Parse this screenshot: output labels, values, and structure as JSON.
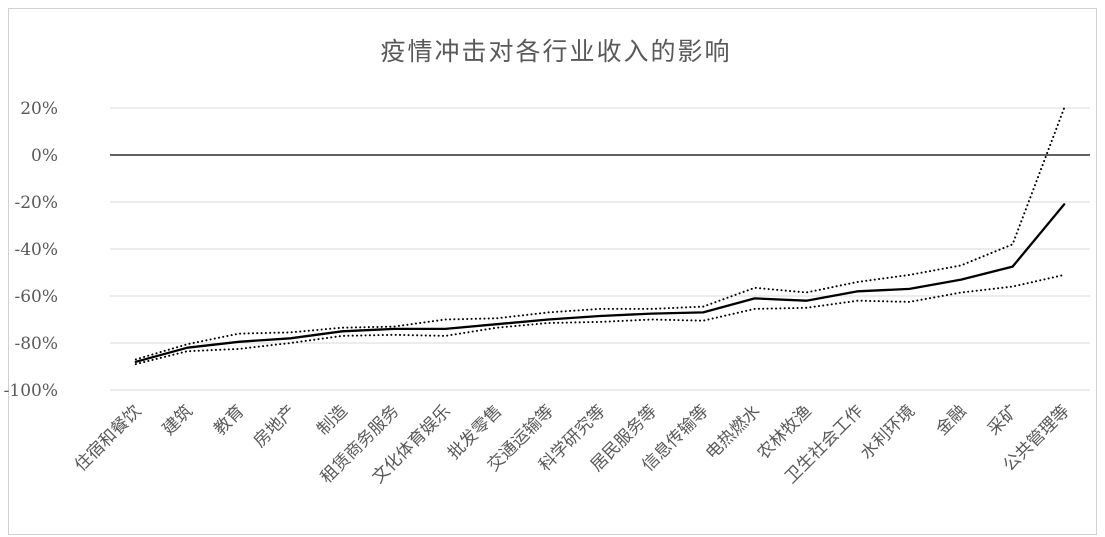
{
  "chart_data": {
    "type": "line",
    "title": "疫情冲击对各行业收入的影响",
    "categories": [
      "住宿和餐饮",
      "建筑",
      "教育",
      "房地产",
      "制造",
      "租赁商务服务",
      "文化体育娱乐",
      "批发零售",
      "交通运输等",
      "科学研究等",
      "居民服务等",
      "信息传输等",
      "电热燃水",
      "农林牧渔",
      "卫生社会工作",
      "水利环境",
      "金融",
      "采矿",
      "公共管理等"
    ],
    "y_ticks": [
      "20%",
      "0%",
      "-20%",
      "-40%",
      "-60%",
      "-80%",
      "-100%"
    ],
    "ylim": [
      -100,
      20
    ],
    "grid": true,
    "series": [
      {
        "style": "solid",
        "values": [
          -88,
          -82,
          -79.5,
          -78,
          -75,
          -74,
          -74,
          -72,
          -70,
          -68.5,
          -67.5,
          -67,
          -61,
          -62,
          -58,
          -57,
          -53,
          -47.5,
          -21
        ]
      },
      {
        "style": "dotted",
        "values": [
          -87,
          -80.5,
          -76,
          -75.5,
          -73.5,
          -73,
          -70,
          -69.5,
          -67,
          -65.5,
          -65.5,
          -64.5,
          -56.5,
          -58.5,
          -54,
          -51,
          -47,
          -38,
          20
        ]
      },
      {
        "style": "dotted",
        "values": [
          -89,
          -83.5,
          -82.5,
          -80,
          -77,
          -76.5,
          -77,
          -73.5,
          -71.5,
          -71,
          -70,
          -70.5,
          -65.5,
          -65,
          -62,
          -62.5,
          -58.5,
          -56,
          -51
        ]
      }
    ]
  }
}
